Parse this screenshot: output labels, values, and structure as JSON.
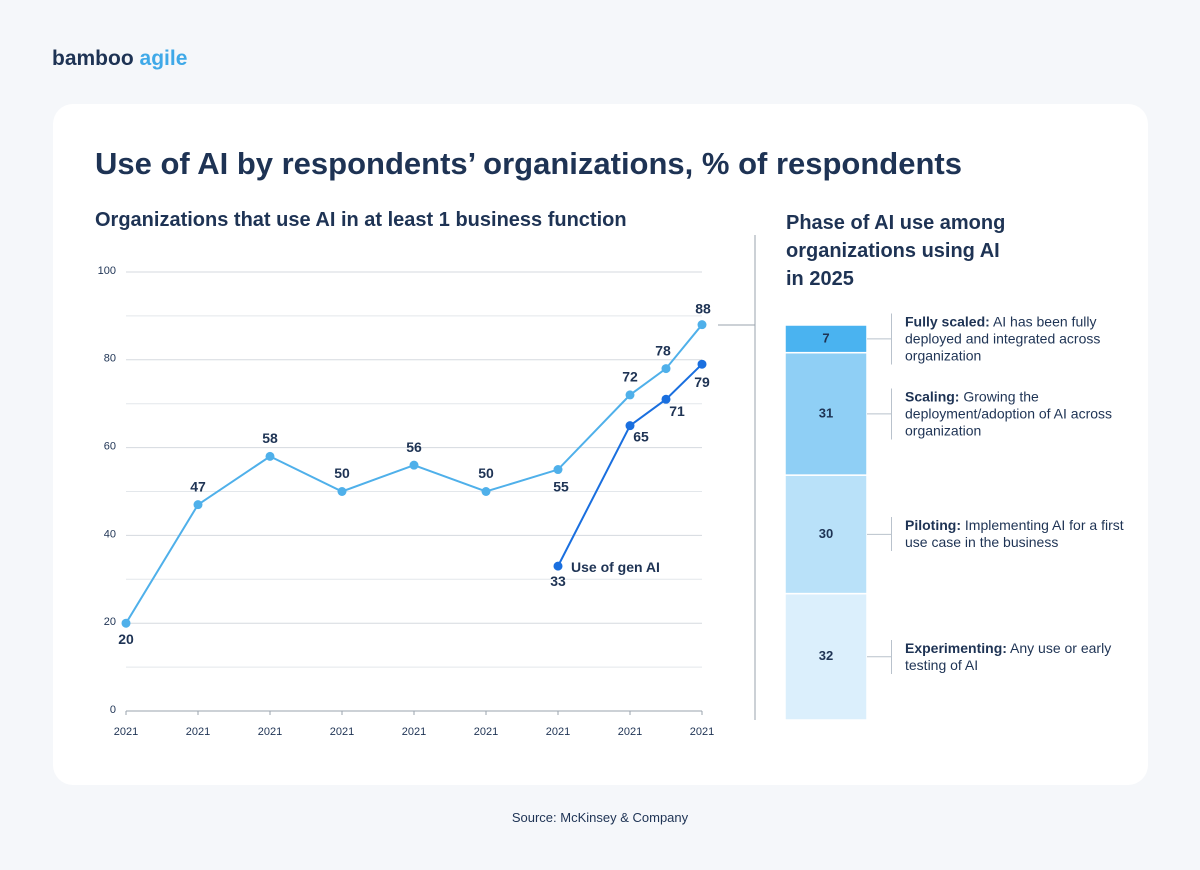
{
  "brand": {
    "first": "bamboo",
    "second": "agile"
  },
  "title": "Use of AI by respondents’ organizations, % of respondents",
  "source": "Source: McKinsey & Company",
  "chart_data": [
    {
      "type": "line",
      "title": "Organizations that use AI in at least 1 business function",
      "categories": [
        "2021",
        "2021",
        "2021",
        "2021",
        "2021",
        "2021",
        "2021",
        "2021",
        null,
        "2021"
      ],
      "series": [
        {
          "color": "#4fb0ea",
          "values": [
            20,
            47,
            58,
            50,
            56,
            50,
            55,
            72,
            78,
            88
          ]
        },
        {
          "name": "Use of gen AI",
          "color": "#1a6fdf",
          "values": [
            null,
            null,
            null,
            null,
            null,
            null,
            33,
            65,
            71,
            79
          ]
        }
      ],
      "ylim": [
        0,
        100
      ],
      "yticks": [
        0,
        20,
        40,
        60,
        80,
        100
      ],
      "minor_yticks": [
        10,
        30,
        50,
        70,
        90
      ],
      "grid": true
    },
    {
      "type": "stacked_bar",
      "title": "Phase of AI use among organizations using AI in 2025",
      "ylim": [
        0,
        100
      ],
      "series": [
        {
          "name": "Experimenting:",
          "description": "Any use or early testing of AI",
          "color": "#dbeffc",
          "values": [
            32
          ]
        },
        {
          "name": "Piloting:",
          "description": "Implementing AI for a first use case in the business",
          "color": "#b9e1f9",
          "values": [
            30
          ]
        },
        {
          "name": "Scaling:",
          "description": "Growing the deployment/adoption of AI across organization",
          "color": "#8fcff5",
          "values": [
            31
          ]
        },
        {
          "name": "Fully scaled:",
          "description": "AI has been fully deployed and integrated across organization",
          "color": "#4ab3f0",
          "values": [
            7
          ]
        }
      ]
    }
  ]
}
